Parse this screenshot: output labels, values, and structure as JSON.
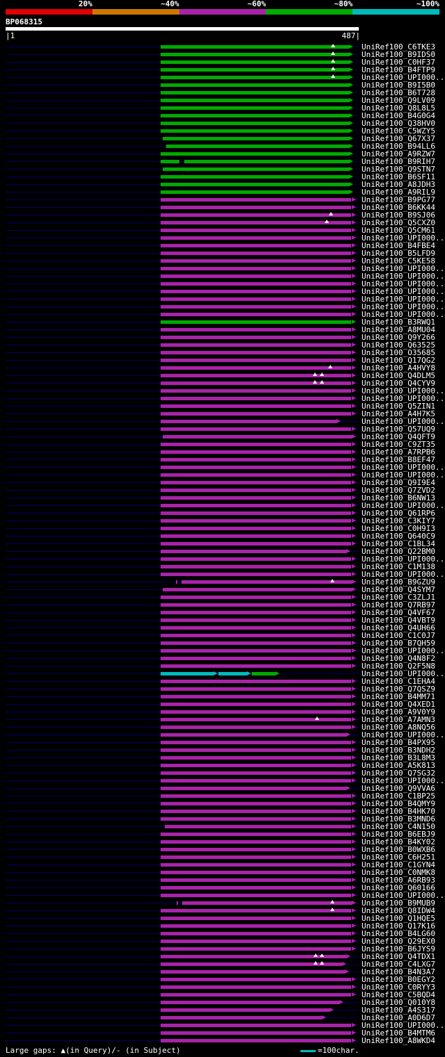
{
  "palette": {
    "red": "#dd0000",
    "orange": "#cc7700",
    "magenta": "#aa22aa",
    "green": "#00aa00",
    "cyan": "#00bbbb",
    "query": "#ffffff",
    "leader": "#000066",
    "background": "#000000",
    "text": "#ffffff"
  },
  "scale": {
    "labels": [
      "20%",
      "~40%",
      "~60%",
      "~80%",
      "~100%"
    ],
    "colors": [
      "red",
      "orange",
      "magenta",
      "green",
      "cyan"
    ]
  },
  "query": {
    "id": "BP068315",
    "start": 1,
    "end": 487,
    "start_label": "|1",
    "end_label": "487|"
  },
  "legend": {
    "gaps_label": "Large gaps: ▲(in Query)/- (in Subject)",
    "scale_label": "=100char."
  },
  "chart_data": {
    "type": "bar",
    "title": "BP068315",
    "xlabel": "query position",
    "x_axis": {
      "min": 1,
      "max": 487
    },
    "legend_bins": [
      "20%",
      "~40%",
      "~60%",
      "~80%",
      "~100%"
    ],
    "rows": [
      {
        "label": "UniRef100_C6TKE3",
        "color": "green",
        "start": 214,
        "end": 474,
        "gaps": [
          452
        ]
      },
      {
        "label": "UniRef100_B9IDS0",
        "color": "green",
        "start": 214,
        "end": 474,
        "gaps": [
          452
        ]
      },
      {
        "label": "UniRef100_C0HF37",
        "color": "green",
        "start": 214,
        "end": 474,
        "gaps": [
          452
        ]
      },
      {
        "label": "UniRef100_B4FTP9",
        "color": "green",
        "start": 214,
        "end": 474,
        "gaps": [
          452
        ]
      },
      {
        "label": "UniRef100_UPI000...",
        "color": "green",
        "start": 214,
        "end": 474,
        "gaps": [
          452
        ]
      },
      {
        "label": "UniRef100_B9I5B0",
        "color": "green",
        "start": 214,
        "end": 474
      },
      {
        "label": "UniRef100_B6T728",
        "color": "green",
        "start": 214,
        "end": 474
      },
      {
        "label": "UniRef100_Q9LV09",
        "color": "green",
        "start": 214,
        "end": 474
      },
      {
        "label": "UniRef100_Q8L8L5",
        "color": "green",
        "start": 214,
        "end": 474
      },
      {
        "label": "UniRef100_B4G0G4",
        "color": "green",
        "start": 214,
        "end": 474
      },
      {
        "label": "UniRef100_Q38HV0",
        "color": "green",
        "start": 214,
        "end": 474
      },
      {
        "label": "UniRef100_C5WZY5",
        "color": "green",
        "start": 214,
        "end": 474
      },
      {
        "label": "UniRef100_Q67X37",
        "color": "green",
        "start": 217,
        "end": 474
      },
      {
        "label": "UniRef100_B94LL6",
        "color": "green",
        "start": 222,
        "end": 474
      },
      {
        "label": "UniRef100_A9RZW7",
        "color": "green",
        "start": 214,
        "end": 474
      },
      {
        "label": "UniRef100_B9RIH7",
        "color": "green",
        "segments": [
          {
            "start": 214,
            "end": 240,
            "color": "green",
            "arrow": false
          },
          {
            "start": 247,
            "end": 474,
            "color": "green",
            "arrow": true
          }
        ]
      },
      {
        "label": "UniRef100_Q9STN7",
        "color": "green",
        "start": 217,
        "end": 474
      },
      {
        "label": "UniRef100_B6SF11",
        "color": "green",
        "start": 214,
        "end": 474
      },
      {
        "label": "UniRef100_A8JDH3",
        "color": "green",
        "start": 214,
        "end": 474
      },
      {
        "label": "UniRef100_A9RIL9",
        "color": "green",
        "start": 214,
        "end": 474
      },
      {
        "label": "UniRef100_B9PG77",
        "color": "magenta",
        "start": 214,
        "end": 477
      },
      {
        "label": "UniRef100_B6KK44",
        "color": "magenta",
        "start": 214,
        "end": 477
      },
      {
        "label": "UniRef100_B9SJ06",
        "color": "magenta",
        "start": 214,
        "end": 477,
        "gaps": [
          449
        ]
      },
      {
        "label": "UniRef100_Q5CXZ0",
        "color": "magenta",
        "start": 214,
        "end": 477,
        "gaps": [
          443
        ]
      },
      {
        "label": "UniRef100_Q5CM61",
        "color": "magenta",
        "start": 214,
        "end": 477
      },
      {
        "label": "UniRef100_UPI000...",
        "color": "magenta",
        "start": 214,
        "end": 477
      },
      {
        "label": "UniRef100_B4FBE4",
        "color": "magenta",
        "start": 214,
        "end": 477
      },
      {
        "label": "UniRef100_B5LFD9",
        "color": "magenta",
        "start": 214,
        "end": 477
      },
      {
        "label": "UniRef100_C5KE58",
        "color": "magenta",
        "start": 214,
        "end": 477
      },
      {
        "label": "UniRef100_UPI000...",
        "color": "magenta",
        "start": 214,
        "end": 477
      },
      {
        "label": "UniRef100_UPI000...",
        "color": "magenta",
        "start": 214,
        "end": 477
      },
      {
        "label": "UniRef100_UPI000...",
        "color": "magenta",
        "start": 214,
        "end": 477
      },
      {
        "label": "UniRef100_UPI000...",
        "color": "magenta",
        "start": 214,
        "end": 477
      },
      {
        "label": "UniRef100_UPI000...",
        "color": "magenta",
        "start": 214,
        "end": 477
      },
      {
        "label": "UniRef100_UPI000...",
        "color": "magenta",
        "start": 214,
        "end": 477
      },
      {
        "label": "UniRef100_UPI000...",
        "color": "magenta",
        "start": 214,
        "end": 477
      },
      {
        "label": "UniRef100_B3RWQ1",
        "color": "green",
        "start": 214,
        "end": 477
      },
      {
        "label": "UniRef100_A8MU04",
        "color": "magenta",
        "start": 214,
        "end": 477
      },
      {
        "label": "UniRef100_Q9Y266",
        "color": "magenta",
        "start": 214,
        "end": 477
      },
      {
        "label": "UniRef100_Q63525",
        "color": "magenta",
        "start": 214,
        "end": 477
      },
      {
        "label": "UniRef100_O35685",
        "color": "magenta",
        "start": 214,
        "end": 477
      },
      {
        "label": "UniRef100_Q17QG2",
        "color": "magenta",
        "start": 214,
        "end": 477
      },
      {
        "label": "UniRef100_A4HVY8",
        "color": "magenta",
        "start": 214,
        "end": 477,
        "gaps": [
          448
        ]
      },
      {
        "label": "UniRef100_Q4DLM5",
        "color": "magenta",
        "start": 214,
        "end": 477,
        "gaps": [
          427,
          436
        ]
      },
      {
        "label": "UniRef100_Q4CYV9",
        "color": "magenta",
        "start": 214,
        "end": 477,
        "gaps": [
          427,
          436
        ]
      },
      {
        "label": "UniRef100_UPI000...",
        "color": "magenta",
        "start": 214,
        "end": 477
      },
      {
        "label": "UniRef100_UPI000...",
        "color": "magenta",
        "start": 214,
        "end": 477
      },
      {
        "label": "UniRef100_Q5ZIN1",
        "color": "magenta",
        "start": 214,
        "end": 477
      },
      {
        "label": "UniRef100_A4H7K5",
        "color": "magenta",
        "start": 214,
        "end": 477
      },
      {
        "label": "UniRef100_UPI000...",
        "color": "magenta",
        "start": 214,
        "end": 456
      },
      {
        "label": "UniRef100_Q57UQ9",
        "color": "magenta",
        "start": 214,
        "end": 477
      },
      {
        "label": "UniRef100_Q4QFT9",
        "color": "magenta",
        "start": 217,
        "end": 477
      },
      {
        "label": "UniRef100_C9ZT35",
        "color": "magenta",
        "start": 214,
        "end": 477
      },
      {
        "label": "UniRef100_A7RPB6",
        "color": "magenta",
        "start": 214,
        "end": 477
      },
      {
        "label": "UniRef100_B8EF47",
        "color": "magenta",
        "start": 214,
        "end": 477
      },
      {
        "label": "UniRef100_UPI000...",
        "color": "magenta",
        "start": 214,
        "end": 477
      },
      {
        "label": "UniRef100_UPI000...",
        "color": "magenta",
        "start": 214,
        "end": 477
      },
      {
        "label": "UniRef100_Q9I9E4",
        "color": "magenta",
        "start": 214,
        "end": 477
      },
      {
        "label": "UniRef100_Q7ZVD2",
        "color": "magenta",
        "start": 214,
        "end": 477
      },
      {
        "label": "UniRef100_B6NW13",
        "color": "magenta",
        "start": 214,
        "end": 477
      },
      {
        "label": "UniRef100_UPI000...",
        "color": "magenta",
        "start": 214,
        "end": 477
      },
      {
        "label": "UniRef100_Q61RP6",
        "color": "magenta",
        "start": 214,
        "end": 477
      },
      {
        "label": "UniRef100_C3KIY7",
        "color": "magenta",
        "start": 214,
        "end": 477
      },
      {
        "label": "UniRef100_C0H9I3",
        "color": "magenta",
        "start": 214,
        "end": 477
      },
      {
        "label": "UniRef100_Q640C9",
        "color": "magenta",
        "start": 214,
        "end": 477
      },
      {
        "label": "UniRef100_C1BL34",
        "color": "magenta",
        "start": 214,
        "end": 477
      },
      {
        "label": "UniRef100_Q22BM0",
        "color": "magenta",
        "start": 214,
        "end": 470
      },
      {
        "label": "UniRef100_UPI000...",
        "color": "magenta",
        "start": 214,
        "end": 477
      },
      {
        "label": "UniRef100_C1M138",
        "color": "magenta",
        "start": 214,
        "end": 477
      },
      {
        "label": "UniRef100_UPI000...",
        "color": "magenta",
        "start": 214,
        "end": 477
      },
      {
        "label": "UniRef100_B9GZU9",
        "color": "magenta",
        "segments": [
          {
            "start": 235,
            "end": 237,
            "color": "magenta",
            "arrow": false
          },
          {
            "start": 243,
            "end": 477,
            "color": "magenta",
            "arrow": true
          }
        ],
        "gaps": [
          451
        ]
      },
      {
        "label": "UniRef100_Q4SYM7",
        "color": "magenta",
        "start": 217,
        "end": 477
      },
      {
        "label": "UniRef100_C3ZLJ1",
        "color": "magenta",
        "start": 214,
        "end": 477
      },
      {
        "label": "UniRef100_Q7RB97",
        "color": "magenta",
        "start": 214,
        "end": 477
      },
      {
        "label": "UniRef100_Q4VF67",
        "color": "magenta",
        "start": 214,
        "end": 477
      },
      {
        "label": "UniRef100_Q4VBT9",
        "color": "magenta",
        "start": 214,
        "end": 477
      },
      {
        "label": "UniRef100_Q4UH66",
        "color": "magenta",
        "start": 214,
        "end": 477
      },
      {
        "label": "UniRef100_C1C0J7",
        "color": "magenta",
        "start": 214,
        "end": 477
      },
      {
        "label": "UniRef100_B7QH59",
        "color": "magenta",
        "start": 214,
        "end": 477
      },
      {
        "label": "UniRef100_UPI000...",
        "color": "magenta",
        "start": 214,
        "end": 477
      },
      {
        "label": "UniRef100_Q4N8F2",
        "color": "magenta",
        "start": 214,
        "end": 477
      },
      {
        "label": "UniRef100_Q2F5N8",
        "color": "magenta",
        "start": 214,
        "end": 477
      },
      {
        "label": "UniRef100_UPI000...",
        "segments": [
          {
            "start": 214,
            "end": 287,
            "color": "cyan",
            "arrow": true
          },
          {
            "start": 294,
            "end": 333,
            "color": "cyan",
            "arrow": true
          },
          {
            "start": 340,
            "end": 372,
            "color": "green",
            "arrow": true
          }
        ]
      },
      {
        "label": "UniRef100_C1EHA4",
        "color": "magenta",
        "start": 214,
        "end": 477
      },
      {
        "label": "UniRef100_Q7QSZ9",
        "color": "magenta",
        "start": 214,
        "end": 477
      },
      {
        "label": "UniRef100_B4MM71",
        "color": "magenta",
        "start": 214,
        "end": 477
      },
      {
        "label": "UniRef100_Q4XED1",
        "color": "magenta",
        "start": 214,
        "end": 477
      },
      {
        "label": "UniRef100_A9V0Y9",
        "color": "magenta",
        "start": 214,
        "end": 477
      },
      {
        "label": "UniRef100_A7AMN3",
        "color": "magenta",
        "start": 214,
        "end": 477,
        "gaps": [
          430
        ]
      },
      {
        "label": "UniRef100_A8NQ56",
        "color": "magenta",
        "start": 214,
        "end": 477
      },
      {
        "label": "UniRef100_UPI000...",
        "color": "magenta",
        "start": 214,
        "end": 470
      },
      {
        "label": "UniRef100_B4PX95",
        "color": "magenta",
        "start": 214,
        "end": 477
      },
      {
        "label": "UniRef100_B3NDH2",
        "color": "magenta",
        "start": 214,
        "end": 477
      },
      {
        "label": "UniRef100_B3L8M3",
        "color": "magenta",
        "start": 214,
        "end": 477
      },
      {
        "label": "UniRef100_A5K813",
        "color": "magenta",
        "start": 214,
        "end": 477
      },
      {
        "label": "UniRef100_Q7SG32",
        "color": "magenta",
        "start": 214,
        "end": 477
      },
      {
        "label": "UniRef100_UPI000...",
        "color": "magenta",
        "start": 214,
        "end": 477
      },
      {
        "label": "UniRef100_Q9VVA6",
        "color": "magenta",
        "start": 214,
        "end": 470
      },
      {
        "label": "UniRef100_C1BP25",
        "color": "magenta",
        "start": 214,
        "end": 477
      },
      {
        "label": "UniRef100_B4QMY9",
        "color": "magenta",
        "start": 214,
        "end": 477
      },
      {
        "label": "UniRef100_B4HK70",
        "color": "magenta",
        "start": 214,
        "end": 477
      },
      {
        "label": "UniRef100_B3MND6",
        "color": "magenta",
        "start": 214,
        "end": 477
      },
      {
        "label": "UniRef100_C4N150",
        "color": "magenta",
        "start": 220,
        "end": 477
      },
      {
        "label": "UniRef100_B6EBJ9",
        "color": "magenta",
        "start": 214,
        "end": 477
      },
      {
        "label": "UniRef100_B4KY02",
        "color": "magenta",
        "start": 214,
        "end": 477
      },
      {
        "label": "UniRef100_B0WXB6",
        "color": "magenta",
        "start": 214,
        "end": 477
      },
      {
        "label": "UniRef100_C6H251",
        "color": "magenta",
        "start": 214,
        "end": 477
      },
      {
        "label": "UniRef100_C1GYN4",
        "color": "magenta",
        "start": 214,
        "end": 477
      },
      {
        "label": "UniRef100_C0NMK8",
        "color": "magenta",
        "start": 214,
        "end": 477
      },
      {
        "label": "UniRef100_A6RB93",
        "color": "magenta",
        "start": 214,
        "end": 477
      },
      {
        "label": "UniRef100_Q60166",
        "color": "magenta",
        "start": 214,
        "end": 477
      },
      {
        "label": "UniRef100_UPI000...",
        "color": "magenta",
        "start": 214,
        "end": 477
      },
      {
        "label": "UniRef100_B9MUB9",
        "color": "magenta",
        "segments": [
          {
            "start": 236,
            "end": 238,
            "color": "magenta",
            "arrow": false
          },
          {
            "start": 244,
            "end": 477,
            "color": "magenta",
            "arrow": true
          }
        ],
        "gaps": [
          451
        ]
      },
      {
        "label": "UniRef100_Q8IDW4",
        "color": "magenta",
        "start": 214,
        "end": 477,
        "gaps": [
          451
        ]
      },
      {
        "label": "UniRef100_Q1HQE5",
        "color": "magenta",
        "start": 214,
        "end": 477
      },
      {
        "label": "UniRef100_Q17K16",
        "color": "magenta",
        "start": 214,
        "end": 477
      },
      {
        "label": "UniRef100_B4LG60",
        "color": "magenta",
        "start": 214,
        "end": 477
      },
      {
        "label": "UniRef100_Q29EX0",
        "color": "magenta",
        "start": 214,
        "end": 477
      },
      {
        "label": "UniRef100_B6JYS9",
        "color": "magenta",
        "start": 214,
        "end": 477
      },
      {
        "label": "UniRef100_Q4TDX1",
        "color": "magenta",
        "start": 214,
        "end": 470,
        "gaps": [
          428,
          436
        ]
      },
      {
        "label": "UniRef100_C4LXG7",
        "color": "magenta",
        "start": 214,
        "end": 464,
        "gaps": [
          428,
          436
        ]
      },
      {
        "label": "UniRef100_B4N3A7",
        "color": "magenta",
        "start": 214,
        "end": 468
      },
      {
        "label": "UniRef100_B0EGY2",
        "color": "magenta",
        "start": 214,
        "end": 477
      },
      {
        "label": "UniRef100_C0RYY3",
        "color": "magenta",
        "start": 214,
        "end": 477
      },
      {
        "label": "UniRef100_C5BQD4",
        "color": "magenta",
        "start": 214,
        "end": 477
      },
      {
        "label": "UniRef100_Q010Y8",
        "color": "magenta",
        "start": 214,
        "end": 460
      },
      {
        "label": "UniRef100_A4S317",
        "color": "magenta",
        "start": 214,
        "end": 447
      },
      {
        "label": "UniRef100_A0D6D7",
        "color": "magenta",
        "start": 214,
        "end": 436
      },
      {
        "label": "UniRef100_UPI000...",
        "color": "magenta",
        "start": 214,
        "end": 477
      },
      {
        "label": "UniRef100_B4MTM6",
        "color": "magenta",
        "start": 214,
        "end": 477
      },
      {
        "label": "UniRef100_A8WKD4",
        "color": "magenta",
        "start": 214,
        "end": 477
      }
    ]
  }
}
